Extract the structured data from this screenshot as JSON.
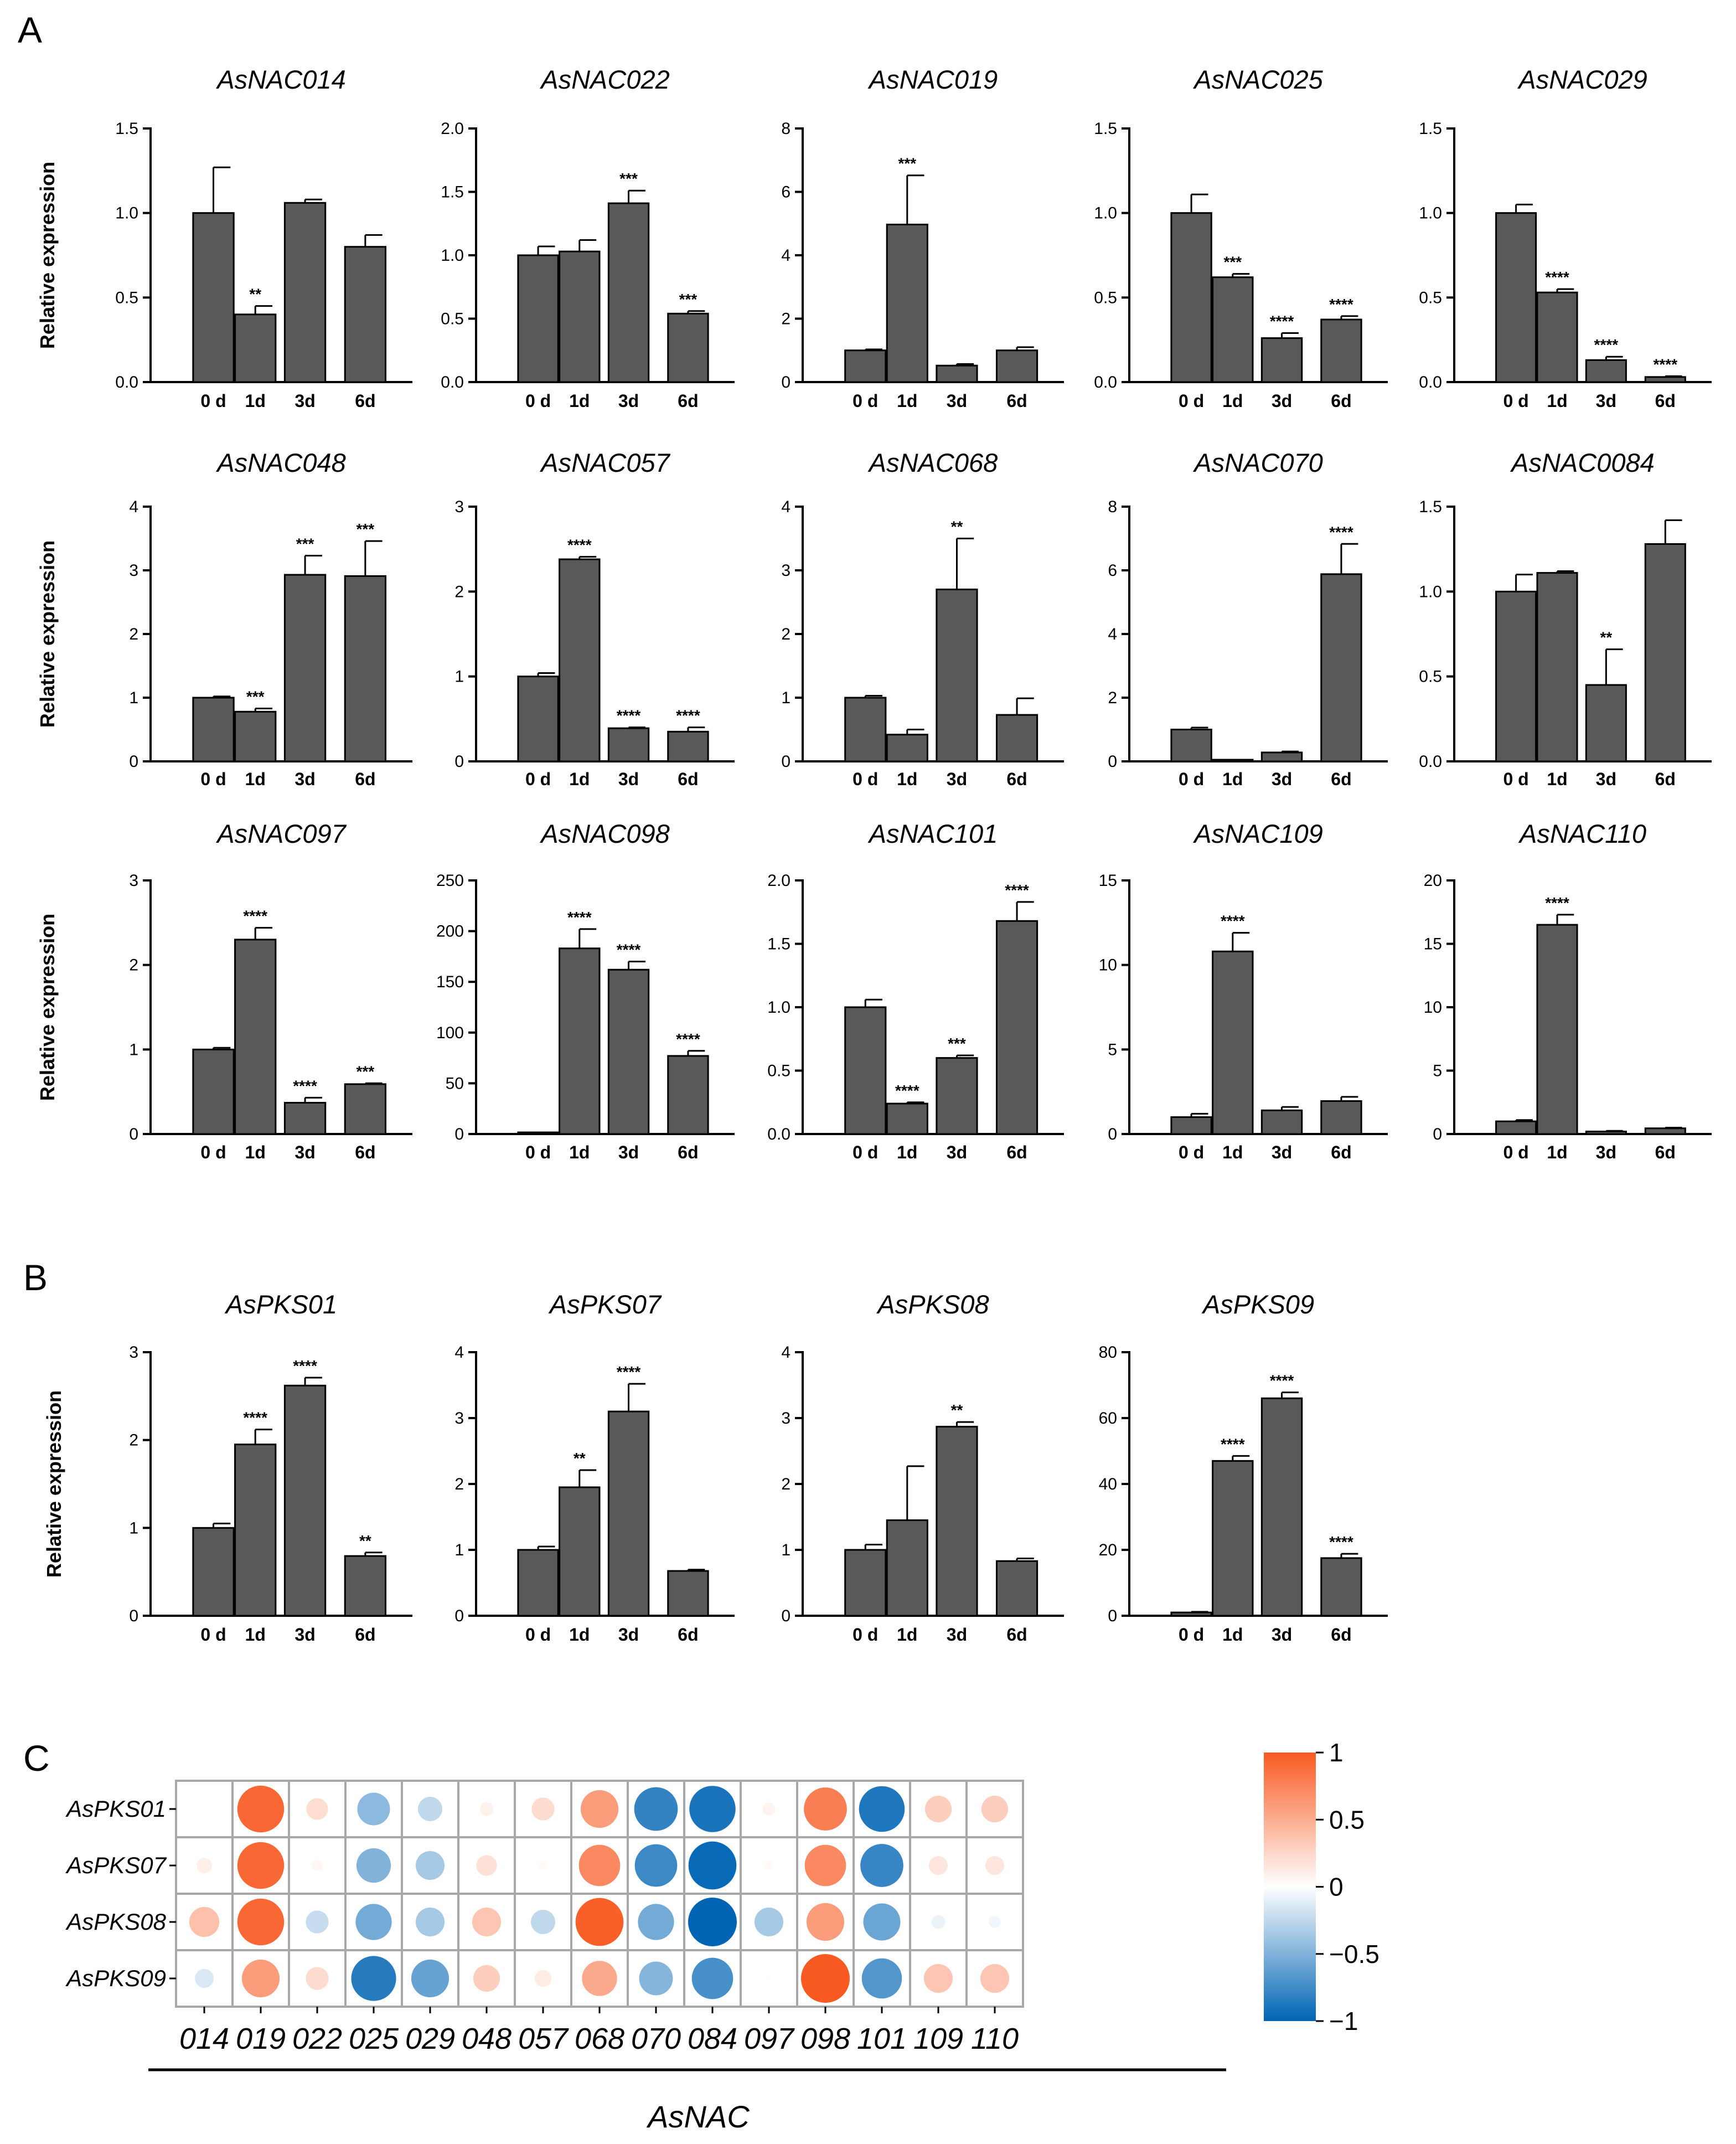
{
  "figure": {
    "panel_labels": [
      "A",
      "B",
      "C"
    ],
    "y_axis_label": "Relative expression",
    "categories": [
      "0 d",
      "1d",
      "3d",
      "6d"
    ]
  },
  "chart_data": [
    {
      "type": "bar",
      "panel": "A",
      "title": "AsNAC014",
      "categories": [
        "0 d",
        "1d",
        "3d",
        "6d"
      ],
      "values": [
        1.0,
        0.4,
        1.06,
        0.8
      ],
      "errors": [
        0.27,
        0.05,
        0.02,
        0.07
      ],
      "significance": [
        "",
        "**",
        "",
        ""
      ],
      "ylim": [
        0,
        1.5
      ],
      "yticks": [
        0,
        0.5,
        1.0,
        1.5
      ],
      "tick_labels": [
        "0.0",
        "0.5",
        "1.0",
        "1.5"
      ],
      "ylabel": "Relative expression"
    },
    {
      "type": "bar",
      "panel": "A",
      "title": "AsNAC022",
      "categories": [
        "0 d",
        "1d",
        "3d",
        "6d"
      ],
      "values": [
        1.0,
        1.03,
        1.41,
        0.54
      ],
      "errors": [
        0.07,
        0.09,
        0.1,
        0.02
      ],
      "significance": [
        "",
        "",
        "***",
        "***"
      ],
      "ylim": [
        0,
        2.0
      ],
      "yticks": [
        0,
        0.5,
        1.0,
        1.5,
        2.0
      ],
      "tick_labels": [
        "0.0",
        "0.5",
        "1.0",
        "1.5",
        "2.0"
      ]
    },
    {
      "type": "bar",
      "panel": "A",
      "title": "AsNAC019",
      "categories": [
        "0 d",
        "1d",
        "3d",
        "6d"
      ],
      "values": [
        1.0,
        4.97,
        0.52,
        1.0
      ],
      "errors": [
        0.03,
        1.55,
        0.05,
        0.1
      ],
      "significance": [
        "",
        "***",
        "",
        ""
      ],
      "ylim": [
        0,
        8
      ],
      "yticks": [
        0,
        2,
        4,
        6,
        8
      ],
      "tick_labels": [
        "0",
        "2",
        "4",
        "6",
        "8"
      ]
    },
    {
      "type": "bar",
      "panel": "A",
      "title": "AsNAC025",
      "categories": [
        "0 d",
        "1d",
        "3d",
        "6d"
      ],
      "values": [
        1.0,
        0.62,
        0.26,
        0.37
      ],
      "errors": [
        0.11,
        0.02,
        0.03,
        0.02
      ],
      "significance": [
        "",
        "***",
        "****",
        "****"
      ],
      "ylim": [
        0,
        1.5
      ],
      "yticks": [
        0,
        0.5,
        1.0,
        1.5
      ],
      "tick_labels": [
        "0.0",
        "0.5",
        "1.0",
        "1.5"
      ]
    },
    {
      "type": "bar",
      "panel": "A",
      "title": "AsNAC029",
      "categories": [
        "0 d",
        "1d",
        "3d",
        "6d"
      ],
      "values": [
        1.0,
        0.53,
        0.13,
        0.03
      ],
      "errors": [
        0.05,
        0.02,
        0.02,
        0.005
      ],
      "significance": [
        "",
        "****",
        "****",
        "****"
      ],
      "ylim": [
        0,
        1.5
      ],
      "yticks": [
        0,
        0.5,
        1.0,
        1.5
      ],
      "tick_labels": [
        "0.0",
        "0.5",
        "1.0",
        "1.5"
      ]
    },
    {
      "type": "bar",
      "panel": "A",
      "title": "AsNAC048",
      "categories": [
        "0 d",
        "1d",
        "3d",
        "6d"
      ],
      "values": [
        1.0,
        0.78,
        2.93,
        2.91
      ],
      "errors": [
        0.02,
        0.05,
        0.3,
        0.55
      ],
      "significance": [
        "",
        "***",
        "***",
        "***"
      ],
      "ylim": [
        0,
        4
      ],
      "yticks": [
        0,
        1,
        2,
        3,
        4
      ],
      "tick_labels": [
        "0",
        "1",
        "2",
        "3",
        "4"
      ],
      "ylabel": "Relative expression"
    },
    {
      "type": "bar",
      "panel": "A",
      "title": "AsNAC057",
      "categories": [
        "0 d",
        "1d",
        "3d",
        "6d"
      ],
      "values": [
        1.0,
        2.38,
        0.39,
        0.35
      ],
      "errors": [
        0.04,
        0.03,
        0.01,
        0.05
      ],
      "significance": [
        "",
        "****",
        "****",
        "****"
      ],
      "ylim": [
        0,
        3
      ],
      "yticks": [
        0,
        1,
        2,
        3
      ],
      "tick_labels": [
        "0",
        "1",
        "2",
        "3"
      ]
    },
    {
      "type": "bar",
      "panel": "A",
      "title": "AsNAC068",
      "categories": [
        "0 d",
        "1d",
        "3d",
        "6d"
      ],
      "values": [
        1.0,
        0.42,
        2.7,
        0.73
      ],
      "errors": [
        0.03,
        0.08,
        0.8,
        0.26
      ],
      "significance": [
        "",
        "",
        "**",
        ""
      ],
      "ylim": [
        0,
        4
      ],
      "yticks": [
        0,
        1,
        2,
        3,
        4
      ],
      "tick_labels": [
        "0",
        "1",
        "2",
        "3",
        "4"
      ]
    },
    {
      "type": "bar",
      "panel": "A",
      "title": "AsNAC070",
      "categories": [
        "0 d",
        "1d",
        "3d",
        "6d"
      ],
      "values": [
        1.0,
        0.03,
        0.28,
        5.88
      ],
      "errors": [
        0.06,
        0.005,
        0.03,
        0.95
      ],
      "significance": [
        "",
        "",
        "",
        "****"
      ],
      "ylim": [
        0,
        8
      ],
      "yticks": [
        0,
        2,
        4,
        6,
        8
      ],
      "tick_labels": [
        "0",
        "2",
        "4",
        "6",
        "8"
      ]
    },
    {
      "type": "bar",
      "panel": "A",
      "title": "AsNAC0084",
      "categories": [
        "0 d",
        "1d",
        "3d",
        "6d"
      ],
      "values": [
        1.0,
        1.11,
        0.45,
        1.28
      ],
      "errors": [
        0.1,
        0.01,
        0.21,
        0.14
      ],
      "significance": [
        "",
        "",
        "**",
        ""
      ],
      "ylim": [
        0,
        1.5
      ],
      "yticks": [
        0,
        0.5,
        1.0,
        1.5
      ],
      "tick_labels": [
        "0.0",
        "0.5",
        "1.0",
        "1.5"
      ]
    },
    {
      "type": "bar",
      "panel": "A",
      "title": "AsNAC097",
      "categories": [
        "0 d",
        "1d",
        "3d",
        "6d"
      ],
      "values": [
        1.0,
        2.3,
        0.37,
        0.59
      ],
      "errors": [
        0.02,
        0.14,
        0.06,
        0.01
      ],
      "significance": [
        "",
        "****",
        "****",
        "***"
      ],
      "ylim": [
        0,
        3
      ],
      "yticks": [
        0,
        1,
        2,
        3
      ],
      "tick_labels": [
        "0",
        "1",
        "2",
        "3"
      ],
      "ylabel": "Relative expression"
    },
    {
      "type": "bar",
      "panel": "A",
      "title": "AsNAC098",
      "categories": [
        "0 d",
        "1d",
        "3d",
        "6d"
      ],
      "values": [
        1.0,
        183,
        162,
        77
      ],
      "errors": [
        0.2,
        19,
        8,
        5
      ],
      "significance": [
        "",
        "****",
        "****",
        "****"
      ],
      "ylim": [
        0,
        250
      ],
      "yticks": [
        0,
        50,
        100,
        150,
        200,
        250
      ],
      "tick_labels": [
        "0",
        "50",
        "100",
        "150",
        "200",
        "250"
      ]
    },
    {
      "type": "bar",
      "panel": "A",
      "title": "AsNAC101",
      "categories": [
        "0 d",
        "1d",
        "3d",
        "6d"
      ],
      "values": [
        1.0,
        0.24,
        0.6,
        1.68
      ],
      "errors": [
        0.06,
        0.01,
        0.02,
        0.15
      ],
      "significance": [
        "",
        "****",
        "***",
        "****"
      ],
      "ylim": [
        0,
        2.0
      ],
      "yticks": [
        0,
        0.5,
        1.0,
        1.5,
        2.0
      ],
      "tick_labels": [
        "0.0",
        "0.5",
        "1.0",
        "1.5",
        "2.0"
      ]
    },
    {
      "type": "bar",
      "panel": "A",
      "title": "AsNAC109",
      "categories": [
        "0 d",
        "1d",
        "3d",
        "6d"
      ],
      "values": [
        1.0,
        10.8,
        1.4,
        1.95
      ],
      "errors": [
        0.2,
        1.1,
        0.2,
        0.25
      ],
      "significance": [
        "",
        "****",
        "",
        ""
      ],
      "ylim": [
        0,
        15
      ],
      "yticks": [
        0,
        5,
        10,
        15
      ],
      "tick_labels": [
        "0",
        "5",
        "10",
        "15"
      ]
    },
    {
      "type": "bar",
      "panel": "A",
      "title": "AsNAC110",
      "categories": [
        "0 d",
        "1d",
        "3d",
        "6d"
      ],
      "values": [
        1.0,
        16.5,
        0.2,
        0.45
      ],
      "errors": [
        0.1,
        0.8,
        0.05,
        0.05
      ],
      "significance": [
        "",
        "****",
        "",
        ""
      ],
      "ylim": [
        0,
        20
      ],
      "yticks": [
        0,
        5,
        10,
        15,
        20
      ],
      "tick_labels": [
        "0",
        "5",
        "10",
        "15",
        "20"
      ]
    },
    {
      "type": "bar",
      "panel": "B",
      "title": "AsPKS01",
      "categories": [
        "0 d",
        "1d",
        "3d",
        "6d"
      ],
      "values": [
        1.0,
        1.95,
        2.62,
        0.68
      ],
      "errors": [
        0.05,
        0.17,
        0.09,
        0.04
      ],
      "significance": [
        "",
        "****",
        "****",
        "**"
      ],
      "ylim": [
        0,
        3
      ],
      "yticks": [
        0,
        1,
        2,
        3
      ],
      "tick_labels": [
        "0",
        "1",
        "2",
        "3"
      ],
      "ylabel": "Relative expression"
    },
    {
      "type": "bar",
      "panel": "B",
      "title": "AsPKS07",
      "categories": [
        "0 d",
        "1d",
        "3d",
        "6d"
      ],
      "values": [
        1.0,
        1.95,
        3.1,
        0.68
      ],
      "errors": [
        0.05,
        0.26,
        0.42,
        0.02
      ],
      "significance": [
        "",
        "**",
        "****",
        ""
      ],
      "ylim": [
        0,
        4
      ],
      "yticks": [
        0,
        1,
        2,
        3,
        4
      ],
      "tick_labels": [
        "0",
        "1",
        "2",
        "3",
        "4"
      ]
    },
    {
      "type": "bar",
      "panel": "B",
      "title": "AsPKS08",
      "categories": [
        "0 d",
        "1d",
        "3d",
        "6d"
      ],
      "values": [
        1.0,
        1.45,
        2.87,
        0.83
      ],
      "errors": [
        0.08,
        0.82,
        0.07,
        0.04
      ],
      "significance": [
        "",
        "",
        "**",
        ""
      ],
      "ylim": [
        0,
        4
      ],
      "yticks": [
        0,
        1,
        2,
        3,
        4
      ],
      "tick_labels": [
        "0",
        "1",
        "2",
        "3",
        "4"
      ]
    },
    {
      "type": "bar",
      "panel": "B",
      "title": "AsPKS09",
      "categories": [
        "0 d",
        "1d",
        "3d",
        "6d"
      ],
      "values": [
        1.0,
        47,
        66,
        17.5
      ],
      "errors": [
        0.2,
        1.5,
        1.8,
        1.3
      ],
      "significance": [
        "",
        "****",
        "****",
        "****"
      ],
      "ylim": [
        0,
        80
      ],
      "yticks": [
        0,
        20,
        40,
        60,
        80
      ],
      "tick_labels": [
        "0",
        "20",
        "40",
        "60",
        "80"
      ]
    },
    {
      "type": "heatmap",
      "panel": "C",
      "title": "",
      "rows": [
        "AsPKS01",
        "AsPKS07",
        "AsPKS08",
        "AsPKS09"
      ],
      "columns": [
        "014",
        "019",
        "022",
        "025",
        "029",
        "048",
        "057",
        "068",
        "070",
        "084",
        "097",
        "098",
        "101",
        "109",
        "110"
      ],
      "xlabel": "AsNAC",
      "values": [
        [
          0.0,
          0.92,
          0.2,
          -0.45,
          -0.25,
          0.08,
          0.22,
          0.6,
          -0.8,
          -0.9,
          0.07,
          0.78,
          -0.88,
          0.3,
          0.3
        ],
        [
          0.1,
          0.92,
          0.05,
          -0.5,
          -0.35,
          0.18,
          0.03,
          0.72,
          -0.76,
          -0.97,
          0.03,
          0.72,
          -0.78,
          0.15,
          0.15
        ],
        [
          0.38,
          0.92,
          -0.22,
          -0.55,
          -0.35,
          0.35,
          -0.25,
          0.97,
          -0.55,
          -1.0,
          -0.35,
          0.6,
          -0.58,
          -0.08,
          -0.06
        ],
        [
          -0.15,
          0.6,
          0.22,
          -0.85,
          -0.6,
          0.3,
          0.12,
          0.52,
          -0.48,
          -0.72,
          0.01,
          1.0,
          -0.68,
          0.35,
          0.35
        ]
      ],
      "colorbar": {
        "ticks": [
          1,
          0.5,
          0,
          -0.5,
          -1
        ],
        "tick_labels": [
          "1",
          "0.5",
          "0",
          "−0.5",
          "−1"
        ],
        "range": [
          -1,
          1
        ],
        "colors": {
          "negative": "#0064b4",
          "zero": "#ffffff",
          "positive": "#f85a22"
        }
      }
    }
  ],
  "style": {
    "bar_color": "#595959",
    "axis_color": "#000000",
    "grid_color": "#a8a8a8"
  }
}
